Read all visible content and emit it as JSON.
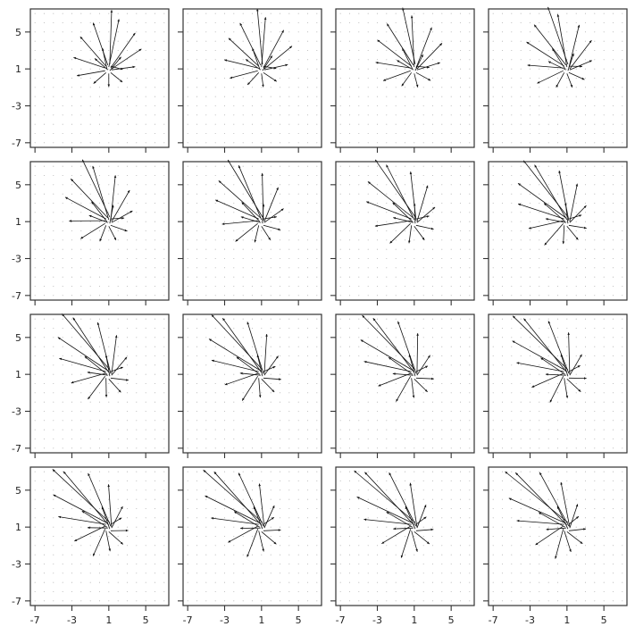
{
  "chart_data": {
    "type": "quiver",
    "layout": {
      "rows": 4,
      "cols": 4,
      "shared_axes": true
    },
    "xlim": [
      -7.5,
      7.5
    ],
    "ylim": [
      -7.5,
      7.5
    ],
    "xticks": [
      -7,
      -3,
      1,
      5
    ],
    "yticks": [
      -7,
      -3,
      1,
      5
    ],
    "xtick_labels": [
      "-7",
      "-3",
      "1",
      "5"
    ],
    "ytick_labels": [
      "-7",
      "-3",
      "1",
      "5"
    ],
    "grid": "dotted background grid, spacing 1",
    "title": "",
    "xlabel": "",
    "ylabel": "",
    "colors": {
      "arrow": "#111111",
      "frame": "#333333",
      "grid_dot": "#b5b5b5"
    },
    "field": {
      "description": "16 snapshots of a radial vector field that progressively rotates and elongates toward the upper-left / lower-right diagonal",
      "rays": [
        {
          "x": 1.0,
          "y": 1.2,
          "u": 1.1,
          "v": 5.2,
          "len": 1.0
        },
        {
          "x": 1.2,
          "y": 1.1,
          "u": 2.8,
          "v": 4.0,
          "len": 0.95
        },
        {
          "x": 1.3,
          "y": 1.0,
          "u": 3.6,
          "v": 2.4,
          "len": 0.9
        },
        {
          "x": 1.3,
          "y": 0.9,
          "u": 3.0,
          "v": 0.4,
          "len": 0.85
        },
        {
          "x": 1.2,
          "y": 0.6,
          "u": 1.6,
          "v": -1.3,
          "len": 0.8
        },
        {
          "x": 1.0,
          "y": 0.5,
          "u": 0.0,
          "v": -1.8,
          "len": 0.8
        },
        {
          "x": 0.7,
          "y": 0.6,
          "u": -1.6,
          "v": -1.4,
          "len": 0.85
        },
        {
          "x": 0.6,
          "y": 0.8,
          "u": -3.4,
          "v": -0.6,
          "len": 0.9
        },
        {
          "x": 0.6,
          "y": 1.1,
          "u": -3.6,
          "v": 1.2,
          "len": 0.95
        },
        {
          "x": 0.7,
          "y": 1.3,
          "u": -2.8,
          "v": 3.2,
          "len": 1.0
        },
        {
          "x": 0.9,
          "y": 1.4,
          "u": -1.6,
          "v": 4.6,
          "len": 1.0
        },
        {
          "x": 1.1,
          "y": 1.5,
          "u": 0.2,
          "v": 5.6,
          "len": 1.05
        },
        {
          "x": 0.8,
          "y": 1.0,
          "u": -0.7,
          "v": 3.2,
          "len": 0.7
        },
        {
          "x": 1.1,
          "y": 0.8,
          "u": 1.9,
          "v": 2.3,
          "len": 0.65
        },
        {
          "x": 0.9,
          "y": 0.9,
          "u": -2.2,
          "v": 1.9,
          "len": 0.65
        },
        {
          "x": 1.2,
          "y": 1.3,
          "u": 2.2,
          "v": -0.6,
          "len": 0.6
        }
      ],
      "frames": [
        {
          "index": 1,
          "rotation_deg": 0,
          "stretch": 1.0
        },
        {
          "index": 2,
          "rotation_deg": 6,
          "stretch": 1.05
        },
        {
          "index": 3,
          "rotation_deg": 12,
          "stretch": 1.1
        },
        {
          "index": 4,
          "rotation_deg": 18,
          "stretch": 1.15
        },
        {
          "index": 5,
          "rotation_deg": 24,
          "stretch": 1.2
        },
        {
          "index": 6,
          "rotation_deg": 30,
          "stretch": 1.25
        },
        {
          "index": 7,
          "rotation_deg": 34,
          "stretch": 1.3
        },
        {
          "index": 8,
          "rotation_deg": 38,
          "stretch": 1.33
        },
        {
          "index": 9,
          "rotation_deg": 41,
          "stretch": 1.36
        },
        {
          "index": 10,
          "rotation_deg": 44,
          "stretch": 1.38
        },
        {
          "index": 11,
          "rotation_deg": 46,
          "stretch": 1.4
        },
        {
          "index": 12,
          "rotation_deg": 48,
          "stretch": 1.42
        },
        {
          "index": 13,
          "rotation_deg": 50,
          "stretch": 1.44
        },
        {
          "index": 14,
          "rotation_deg": 52,
          "stretch": 1.46
        },
        {
          "index": 15,
          "rotation_deg": 54,
          "stretch": 1.48
        },
        {
          "index": 16,
          "rotation_deg": 56,
          "stretch": 1.5
        }
      ]
    }
  }
}
